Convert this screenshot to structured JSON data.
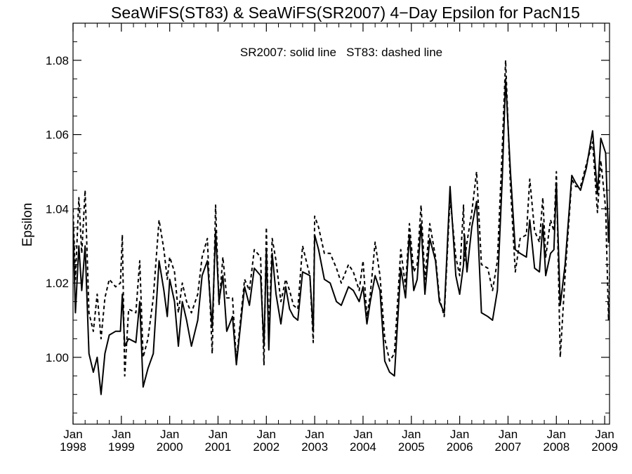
{
  "chart_data": {
    "type": "line",
    "title": "SeaWiFS(ST83) & SeaWiFS(SR2007) 4−Day Epsilon for PacN15",
    "ylabel": "Epsilon",
    "xlabel": "",
    "annotation": "SR2007: solid line   ST83: dashed line",
    "ylim": [
      0.982,
      1.09
    ],
    "yticks": [
      1.0,
      1.02,
      1.04,
      1.06,
      1.08
    ],
    "ytick_labels": [
      "1.00",
      "1.02",
      "1.04",
      "1.06",
      "1.08"
    ],
    "xlim": [
      1998.0,
      2009.1
    ],
    "xticks": [
      {
        "x": 1998.0,
        "month": "Jan",
        "year": "1998"
      },
      {
        "x": 1999.0,
        "month": "Jan",
        "year": "1999"
      },
      {
        "x": 2000.0,
        "month": "Jan",
        "year": "2000"
      },
      {
        "x": 2001.0,
        "month": "Jan",
        "year": "2001"
      },
      {
        "x": 2002.0,
        "month": "Jan",
        "year": "2002"
      },
      {
        "x": 2003.0,
        "month": "Jan",
        "year": "2003"
      },
      {
        "x": 2004.0,
        "month": "Jan",
        "year": "2004"
      },
      {
        "x": 2005.0,
        "month": "Jan",
        "year": "2005"
      },
      {
        "x": 2006.0,
        "month": "Jan",
        "year": "2006"
      },
      {
        "x": 2007.0,
        "month": "Jan",
        "year": "2007"
      },
      {
        "x": 2008.0,
        "month": "Jan",
        "year": "2008"
      },
      {
        "x": 2009.0,
        "month": "Jan",
        "year": "2009"
      }
    ],
    "grid": false,
    "series": [
      {
        "name": "SR2007",
        "style": "solid",
        "color": "#000000",
        "points": [
          [
            1998.0,
            1.036
          ],
          [
            1998.05,
            1.012
          ],
          [
            1998.12,
            1.03
          ],
          [
            1998.18,
            1.018
          ],
          [
            1998.25,
            1.03
          ],
          [
            1998.33,
            1.001
          ],
          [
            1998.42,
            0.996
          ],
          [
            1998.5,
            1.0
          ],
          [
            1998.58,
            0.99
          ],
          [
            1998.66,
            1.001
          ],
          [
            1998.75,
            1.006
          ],
          [
            1998.88,
            1.007
          ],
          [
            1998.98,
            1.007
          ],
          [
            1999.02,
            1.017
          ],
          [
            1999.07,
            1.003
          ],
          [
            1999.15,
            1.005
          ],
          [
            1999.3,
            1.004
          ],
          [
            1999.38,
            1.015
          ],
          [
            1999.45,
            0.992
          ],
          [
            1999.55,
            0.997
          ],
          [
            1999.66,
            1.001
          ],
          [
            1999.78,
            1.026
          ],
          [
            1999.88,
            1.018
          ],
          [
            1999.95,
            1.011
          ],
          [
            2000.0,
            1.021
          ],
          [
            2000.1,
            1.015
          ],
          [
            2000.18,
            1.003
          ],
          [
            2000.26,
            1.015
          ],
          [
            2000.35,
            1.01
          ],
          [
            2000.45,
            1.003
          ],
          [
            2000.58,
            1.01
          ],
          [
            2000.67,
            1.022
          ],
          [
            2000.78,
            1.026
          ],
          [
            2000.88,
            1.008
          ],
          [
            2000.95,
            1.034
          ],
          [
            2001.02,
            1.015
          ],
          [
            2001.1,
            1.022
          ],
          [
            2001.18,
            1.007
          ],
          [
            2001.3,
            1.011
          ],
          [
            2001.38,
            0.998
          ],
          [
            2001.55,
            1.019
          ],
          [
            2001.65,
            1.014
          ],
          [
            2001.75,
            1.024
          ],
          [
            2001.88,
            1.022
          ],
          [
            2001.95,
            1.003
          ],
          [
            2002.0,
            1.029
          ],
          [
            2002.05,
            1.002
          ],
          [
            2002.12,
            1.028
          ],
          [
            2002.2,
            1.017
          ],
          [
            2002.3,
            1.009
          ],
          [
            2002.4,
            1.019
          ],
          [
            2002.48,
            1.013
          ],
          [
            2002.56,
            1.011
          ],
          [
            2002.65,
            1.01
          ],
          [
            2002.75,
            1.023
          ],
          [
            2002.9,
            1.022
          ],
          [
            2002.97,
            1.007
          ],
          [
            2003.0,
            1.033
          ],
          [
            2003.08,
            1.029
          ],
          [
            2003.2,
            1.021
          ],
          [
            2003.32,
            1.02
          ],
          [
            2003.45,
            1.015
          ],
          [
            2003.55,
            1.014
          ],
          [
            2003.7,
            1.019
          ],
          [
            2003.8,
            1.018
          ],
          [
            2003.92,
            1.015
          ],
          [
            2004.0,
            1.019
          ],
          [
            2004.08,
            1.009
          ],
          [
            2004.15,
            1.015
          ],
          [
            2004.25,
            1.022
          ],
          [
            2004.35,
            1.018
          ],
          [
            2004.45,
            0.999
          ],
          [
            2004.55,
            0.996
          ],
          [
            2004.65,
            0.995
          ],
          [
            2004.78,
            1.024
          ],
          [
            2004.88,
            1.016
          ],
          [
            2004.96,
            1.033
          ],
          [
            2005.05,
            1.018
          ],
          [
            2005.12,
            1.021
          ],
          [
            2005.2,
            1.036
          ],
          [
            2005.28,
            1.017
          ],
          [
            2005.38,
            1.032
          ],
          [
            2005.5,
            1.026
          ],
          [
            2005.58,
            1.015
          ],
          [
            2005.68,
            1.012
          ],
          [
            2005.8,
            1.046
          ],
          [
            2005.92,
            1.022
          ],
          [
            2006.0,
            1.017
          ],
          [
            2006.08,
            1.025
          ],
          [
            2006.1,
            1.033
          ],
          [
            2006.15,
            1.023
          ],
          [
            2006.25,
            1.035
          ],
          [
            2006.35,
            1.042
          ],
          [
            2006.45,
            1.012
          ],
          [
            2006.58,
            1.011
          ],
          [
            2006.68,
            1.01
          ],
          [
            2006.78,
            1.018
          ],
          [
            2006.88,
            1.048
          ],
          [
            2006.95,
            1.075
          ],
          [
            2007.05,
            1.05
          ],
          [
            2007.15,
            1.029
          ],
          [
            2007.25,
            1.028
          ],
          [
            2007.38,
            1.027
          ],
          [
            2007.45,
            1.037
          ],
          [
            2007.55,
            1.024
          ],
          [
            2007.65,
            1.023
          ],
          [
            2007.72,
            1.036
          ],
          [
            2007.78,
            1.022
          ],
          [
            2007.88,
            1.028
          ],
          [
            2007.95,
            1.029
          ],
          [
            2008.0,
            1.047
          ],
          [
            2008.08,
            1.014
          ],
          [
            2008.18,
            1.025
          ],
          [
            2008.32,
            1.049
          ],
          [
            2008.4,
            1.047
          ],
          [
            2008.5,
            1.045
          ],
          [
            2008.62,
            1.051
          ],
          [
            2008.75,
            1.061
          ],
          [
            2008.85,
            1.044
          ],
          [
            2008.92,
            1.059
          ],
          [
            2009.02,
            1.055
          ],
          [
            2009.08,
            1.031
          ],
          [
            2009.13,
            1.047
          ]
        ]
      },
      {
        "name": "ST83",
        "style": "dashed",
        "color": "#000000",
        "points": [
          [
            1998.0,
            1.04
          ],
          [
            1998.05,
            1.021
          ],
          [
            1998.12,
            1.043
          ],
          [
            1998.18,
            1.028
          ],
          [
            1998.25,
            1.045
          ],
          [
            1998.33,
            1.012
          ],
          [
            1998.42,
            1.007
          ],
          [
            1998.5,
            1.017
          ],
          [
            1998.58,
            1.005
          ],
          [
            1998.66,
            1.016
          ],
          [
            1998.75,
            1.021
          ],
          [
            1998.88,
            1.019
          ],
          [
            1998.98,
            1.02
          ],
          [
            1999.02,
            1.033
          ],
          [
            1999.07,
            0.995
          ],
          [
            1999.15,
            1.013
          ],
          [
            1999.3,
            1.012
          ],
          [
            1999.38,
            1.026
          ],
          [
            1999.45,
            1.0
          ],
          [
            1999.55,
            1.005
          ],
          [
            1999.66,
            1.016
          ],
          [
            1999.78,
            1.037
          ],
          [
            1999.88,
            1.029
          ],
          [
            1999.95,
            1.021
          ],
          [
            2000.0,
            1.027
          ],
          [
            2000.1,
            1.023
          ],
          [
            2000.18,
            1.012
          ],
          [
            2000.26,
            1.02
          ],
          [
            2000.35,
            1.015
          ],
          [
            2000.45,
            1.012
          ],
          [
            2000.58,
            1.017
          ],
          [
            2000.67,
            1.027
          ],
          [
            2000.78,
            1.032
          ],
          [
            2000.88,
            1.001
          ],
          [
            2000.95,
            1.041
          ],
          [
            2001.02,
            1.014
          ],
          [
            2001.1,
            1.027
          ],
          [
            2001.18,
            1.016
          ],
          [
            2001.3,
            1.016
          ],
          [
            2001.38,
            0.999
          ],
          [
            2001.55,
            1.021
          ],
          [
            2001.65,
            1.018
          ],
          [
            2001.75,
            1.029
          ],
          [
            2001.88,
            1.027
          ],
          [
            2001.95,
            0.998
          ],
          [
            2002.0,
            1.035
          ],
          [
            2002.05,
            1.006
          ],
          [
            2002.12,
            1.032
          ],
          [
            2002.2,
            1.026
          ],
          [
            2002.3,
            1.015
          ],
          [
            2002.4,
            1.021
          ],
          [
            2002.48,
            1.018
          ],
          [
            2002.56,
            1.014
          ],
          [
            2002.65,
            1.013
          ],
          [
            2002.75,
            1.03
          ],
          [
            2002.9,
            1.022
          ],
          [
            2002.97,
            1.004
          ],
          [
            2003.0,
            1.038
          ],
          [
            2003.08,
            1.035
          ],
          [
            2003.2,
            1.028
          ],
          [
            2003.32,
            1.028
          ],
          [
            2003.45,
            1.024
          ],
          [
            2003.55,
            1.02
          ],
          [
            2003.7,
            1.025
          ],
          [
            2003.8,
            1.023
          ],
          [
            2003.92,
            1.018
          ],
          [
            2004.0,
            1.026
          ],
          [
            2004.08,
            1.011
          ],
          [
            2004.15,
            1.017
          ],
          [
            2004.25,
            1.031
          ],
          [
            2004.35,
            1.022
          ],
          [
            2004.45,
            1.005
          ],
          [
            2004.55,
            0.999
          ],
          [
            2004.65,
            1.001
          ],
          [
            2004.78,
            1.029
          ],
          [
            2004.88,
            1.019
          ],
          [
            2004.96,
            1.036
          ],
          [
            2005.05,
            1.023
          ],
          [
            2005.12,
            1.025
          ],
          [
            2005.2,
            1.041
          ],
          [
            2005.28,
            1.021
          ],
          [
            2005.38,
            1.036
          ],
          [
            2005.5,
            1.027
          ],
          [
            2005.58,
            1.016
          ],
          [
            2005.68,
            1.011
          ],
          [
            2005.8,
            1.043
          ],
          [
            2005.92,
            1.027
          ],
          [
            2006.0,
            1.022
          ],
          [
            2006.08,
            1.041
          ],
          [
            2006.1,
            1.026
          ],
          [
            2006.15,
            1.031
          ],
          [
            2006.25,
            1.039
          ],
          [
            2006.35,
            1.05
          ],
          [
            2006.45,
            1.025
          ],
          [
            2006.58,
            1.024
          ],
          [
            2006.68,
            1.018
          ],
          [
            2006.78,
            1.026
          ],
          [
            2006.88,
            1.056
          ],
          [
            2006.95,
            1.08
          ],
          [
            2007.05,
            1.046
          ],
          [
            2007.15,
            1.023
          ],
          [
            2007.25,
            1.032
          ],
          [
            2007.38,
            1.033
          ],
          [
            2007.45,
            1.048
          ],
          [
            2007.55,
            1.034
          ],
          [
            2007.65,
            1.031
          ],
          [
            2007.72,
            1.043
          ],
          [
            2007.78,
            1.027
          ],
          [
            2007.88,
            1.037
          ],
          [
            2007.95,
            1.034
          ],
          [
            2008.0,
            1.05
          ],
          [
            2008.08,
            1.0
          ],
          [
            2008.18,
            1.022
          ],
          [
            2008.32,
            1.048
          ],
          [
            2008.4,
            1.046
          ],
          [
            2008.5,
            1.046
          ],
          [
            2008.62,
            1.052
          ],
          [
            2008.75,
            1.058
          ],
          [
            2008.85,
            1.039
          ],
          [
            2008.92,
            1.053
          ],
          [
            2009.02,
            1.04
          ],
          [
            2009.08,
            1.01
          ],
          [
            2009.13,
            1.039
          ]
        ]
      }
    ]
  }
}
